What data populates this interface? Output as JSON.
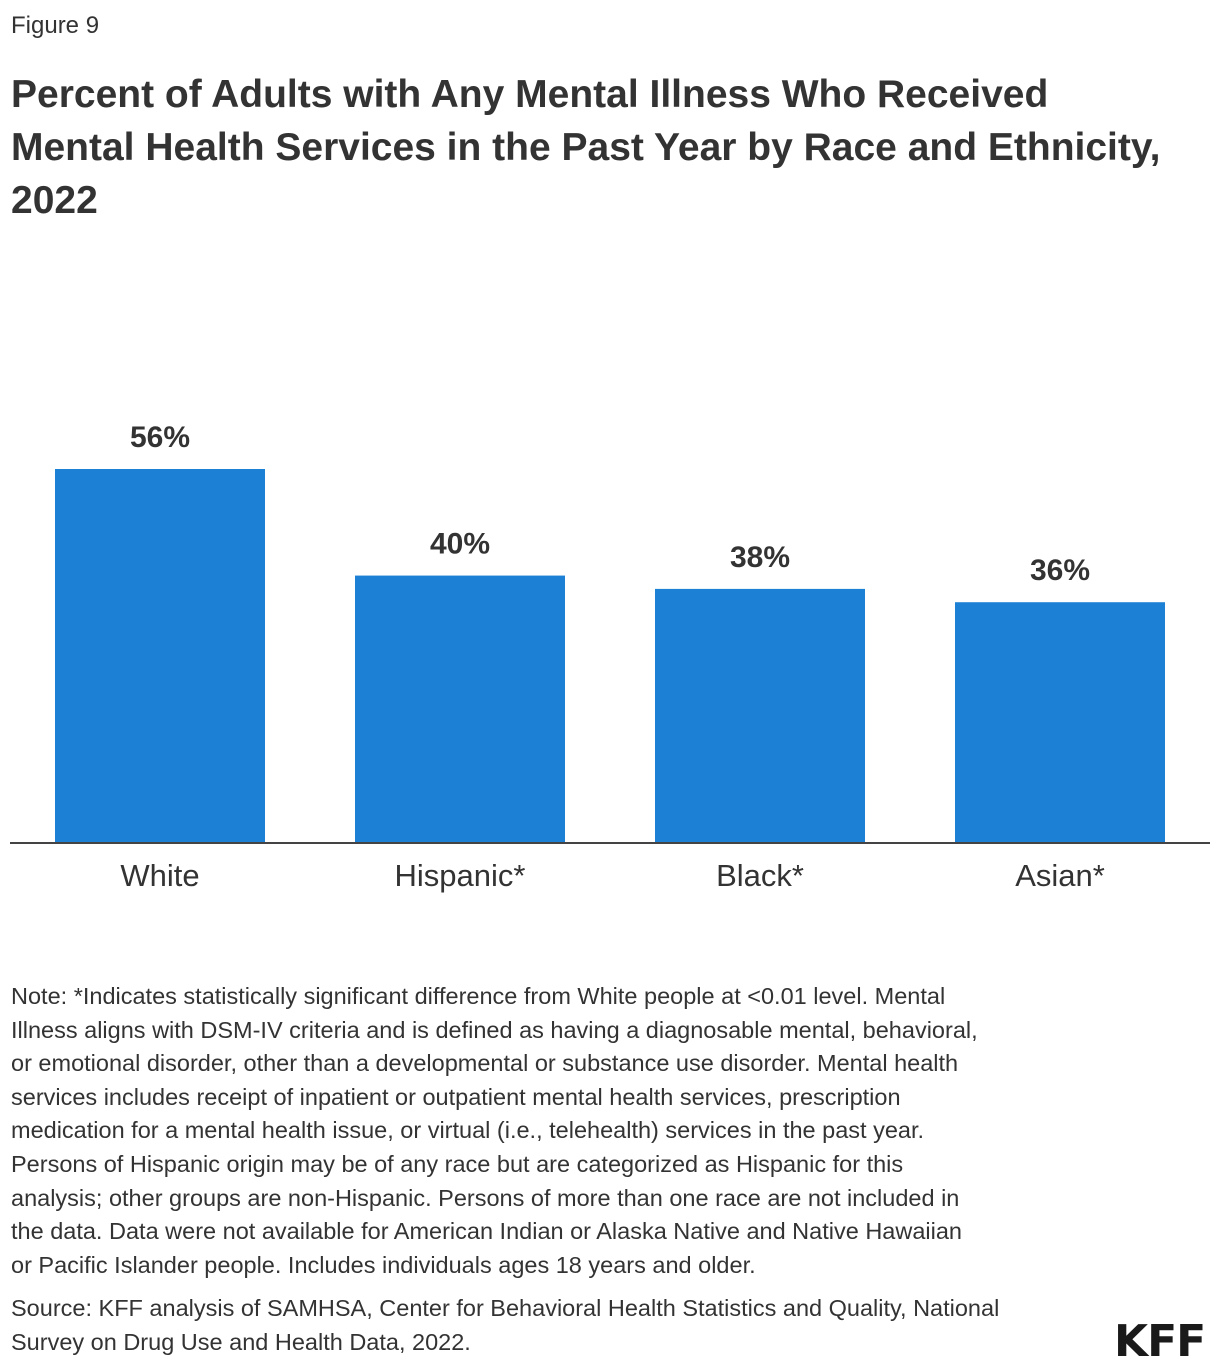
{
  "figure_label": "Figure 9",
  "title_lines": [
    "Percent of Adults with Any Mental Illness Who Received",
    "Mental Health Services in the Past Year by Race and Ethnicity,",
    "2022"
  ],
  "chart_data": {
    "type": "bar",
    "title": "Percent of Adults with Any Mental Illness Who Received Mental Health Services in the Past Year by Race and Ethnicity, 2022",
    "categories": [
      "White",
      "Hispanic*",
      "Black*",
      "Asian*"
    ],
    "values": [
      56,
      40,
      38,
      36
    ],
    "data_labels": [
      "56%",
      "40%",
      "38%",
      "36%"
    ],
    "unit": "%",
    "xlabel": "",
    "ylabel": "",
    "ylim": [
      0,
      56
    ],
    "grid": false,
    "legend": "none",
    "bar_color": "#1c80d4"
  },
  "note_lines": [
    "Note: *Indicates statistically significant difference from White people at <0.01 level. Mental",
    "Illness aligns with DSM-IV criteria and is defined as having a diagnosable mental, behavioral,",
    "or emotional disorder, other than a developmental or substance use disorder. Mental health",
    "services includes receipt of inpatient or outpatient mental health services, prescription",
    "medication for a mental health issue, or virtual (i.e., telehealth) services in the past year.",
    "Persons of Hispanic origin may be of any race but are categorized as Hispanic for this",
    "analysis; other groups are non-Hispanic. Persons of more than one race are not included in",
    "the data. Data were not available for American Indian or Alaska Native and Native Hawaiian",
    "or Pacific Islander people. Includes individuals ages 18 years and older."
  ],
  "source_lines": [
    "Source: KFF analysis of SAMHSA, Center for Behavioral Health Statistics and Quality, National",
    "Survey on Drug Use and Health Data, 2022."
  ],
  "logo": "KFF"
}
